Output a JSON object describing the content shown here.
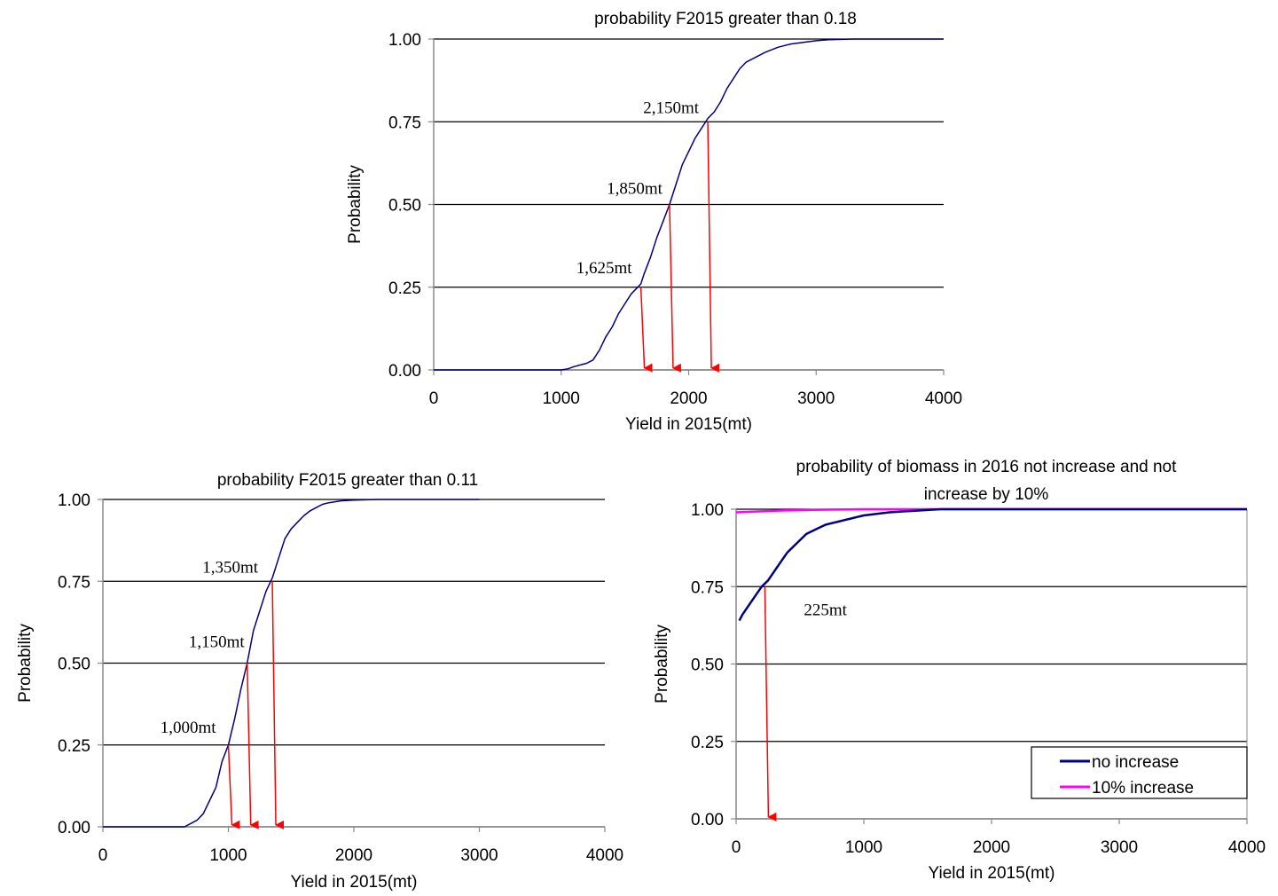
{
  "chart_data": [
    {
      "type": "line",
      "title": "probability  F2015 greater  than  0.18",
      "xlabel": "Yield in 2015(mt)",
      "ylabel": "Probability",
      "xlim": [
        0,
        4000
      ],
      "ylim": [
        0,
        1
      ],
      "x_ticks": [
        "0",
        "1000",
        "2000",
        "3000",
        "4000"
      ],
      "y_ticks": [
        "0.00",
        "0.25",
        "0.50",
        "0.75",
        "1.00"
      ],
      "grid": "horizontal",
      "series": [
        {
          "color": "#000080",
          "x": [
            0,
            1000,
            1050,
            1100,
            1150,
            1200,
            1250,
            1300,
            1350,
            1400,
            1450,
            1500,
            1550,
            1600,
            1625,
            1650,
            1700,
            1750,
            1800,
            1850,
            1900,
            1950,
            2000,
            2050,
            2100,
            2150,
            2200,
            2250,
            2300,
            2350,
            2400,
            2450,
            2500,
            2600,
            2700,
            2800,
            2900,
            3000,
            3100,
            3200,
            3300,
            3500,
            3600,
            4000
          ],
          "y": [
            0,
            0,
            0.003,
            0.01,
            0.015,
            0.02,
            0.03,
            0.06,
            0.1,
            0.13,
            0.17,
            0.2,
            0.23,
            0.25,
            0.26,
            0.29,
            0.34,
            0.4,
            0.45,
            0.5,
            0.56,
            0.62,
            0.66,
            0.7,
            0.73,
            0.76,
            0.78,
            0.81,
            0.85,
            0.88,
            0.91,
            0.93,
            0.94,
            0.96,
            0.975,
            0.985,
            0.99,
            0.995,
            0.998,
            0.999,
            1,
            1,
            1,
            1
          ]
        }
      ],
      "arrows": [
        {
          "x": 1625,
          "y_from": 0.25,
          "label": "1,625mt"
        },
        {
          "x": 1850,
          "y_from": 0.5,
          "label": "1,850mt"
        },
        {
          "x": 2150,
          "y_from": 0.75,
          "label": "2,150mt"
        }
      ],
      "arrow_color": "#ff0000"
    },
    {
      "type": "line",
      "title": "probability F2015 greater than 0.11",
      "xlabel": "Yield in 2015(mt)",
      "ylabel": "Probability",
      "xlim": [
        0,
        4000
      ],
      "ylim": [
        0,
        1
      ],
      "x_ticks": [
        "0",
        "1000",
        "2000",
        "3000",
        "4000"
      ],
      "y_ticks": [
        "0.00",
        "0.25",
        "0.50",
        "0.75",
        "1.00"
      ],
      "grid": "horizontal",
      "series": [
        {
          "color": "#000080",
          "x": [
            0,
            650,
            700,
            750,
            800,
            850,
            900,
            950,
            1000,
            1050,
            1100,
            1150,
            1200,
            1250,
            1300,
            1350,
            1400,
            1450,
            1500,
            1550,
            1600,
            1650,
            1700,
            1750,
            1800,
            1850,
            1900,
            2000,
            2200,
            2500,
            3000
          ],
          "y": [
            0,
            0,
            0.01,
            0.02,
            0.04,
            0.08,
            0.12,
            0.2,
            0.25,
            0.33,
            0.42,
            0.5,
            0.6,
            0.66,
            0.72,
            0.76,
            0.82,
            0.88,
            0.91,
            0.93,
            0.95,
            0.965,
            0.975,
            0.985,
            0.99,
            0.993,
            0.996,
            0.998,
            1,
            1,
            1
          ]
        }
      ],
      "arrows": [
        {
          "x": 1000,
          "y_from": 0.25,
          "label": "1,000mt"
        },
        {
          "x": 1150,
          "y_from": 0.5,
          "label": "1,150mt"
        },
        {
          "x": 1350,
          "y_from": 0.75,
          "label": "1,350mt"
        }
      ],
      "arrow_color": "#ff0000"
    },
    {
      "type": "line",
      "title": "probability of biomass in 2016 not increase and not increase by 10%",
      "title_lines": [
        "probability of biomass in 2016 not increase and not",
        "increase by 10%"
      ],
      "xlabel": "Yield in 2015(mt)",
      "ylabel": "Probability",
      "xlim": [
        0,
        4000
      ],
      "ylim": [
        0,
        1
      ],
      "x_ticks": [
        "0",
        "1000",
        "2000",
        "3000",
        "4000"
      ],
      "y_ticks": [
        "0.00",
        "0.25",
        "0.50",
        "0.75",
        "1.00"
      ],
      "grid": "horizontal",
      "legend": "bottom-right",
      "series": [
        {
          "name": "no increase",
          "color": "#000080",
          "x": [
            25,
            50,
            100,
            150,
            200,
            250,
            300,
            350,
            400,
            450,
            500,
            550,
            600,
            650,
            700,
            750,
            800,
            850,
            900,
            950,
            1000,
            1100,
            1200,
            1400,
            1600,
            2000,
            3000,
            4000
          ],
          "y": [
            0.64,
            0.66,
            0.69,
            0.72,
            0.75,
            0.77,
            0.8,
            0.83,
            0.86,
            0.88,
            0.9,
            0.92,
            0.93,
            0.94,
            0.95,
            0.955,
            0.96,
            0.965,
            0.97,
            0.975,
            0.98,
            0.985,
            0.99,
            0.995,
            1,
            1,
            1,
            1
          ]
        },
        {
          "name": "10% increase",
          "color": "#ff00ff",
          "x": [
            0,
            300,
            600,
            1000,
            2000,
            4000
          ],
          "y": [
            0.99,
            0.995,
            0.998,
            1,
            1,
            1
          ]
        }
      ],
      "arrows": [
        {
          "x": 225,
          "y_from": 0.75,
          "label": "225mt"
        }
      ],
      "arrow_color": "#ff0000"
    }
  ]
}
